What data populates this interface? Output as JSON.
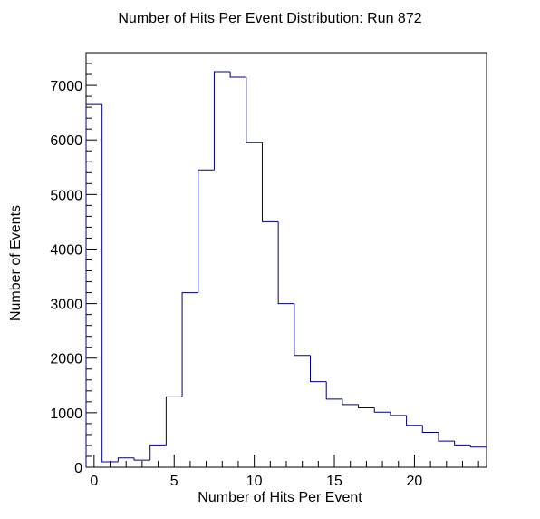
{
  "chart_data": {
    "type": "bar",
    "title": "Number of Hits Per Event Distribution: Run 872",
    "xlabel": "Number of Hits Per Event",
    "ylabel": "Number of Events",
    "xlim": [
      -0.5,
      24.5
    ],
    "ylim": [
      0,
      7600
    ],
    "x_ticks": [
      0,
      5,
      10,
      15,
      20
    ],
    "y_ticks": [
      0,
      1000,
      2000,
      3000,
      4000,
      5000,
      6000,
      7000
    ],
    "bin_edges": [
      -0.5,
      0.5,
      1.5,
      2.5,
      3.5,
      4.5,
      5.5,
      6.5,
      7.5,
      8.5,
      9.5,
      10.5,
      11.5,
      12.5,
      13.5,
      14.5,
      15.5,
      16.5,
      17.5,
      18.5,
      19.5,
      20.5,
      21.5,
      22.5,
      23.5,
      24.5
    ],
    "values": [
      6650,
      100,
      170,
      130,
      410,
      1290,
      3200,
      5450,
      7250,
      7150,
      5950,
      4500,
      3000,
      2050,
      1570,
      1250,
      1150,
      1090,
      1010,
      950,
      770,
      640,
      480,
      410,
      370
    ],
    "line_color": "#000080",
    "grid": false,
    "histogram_style": "step"
  }
}
